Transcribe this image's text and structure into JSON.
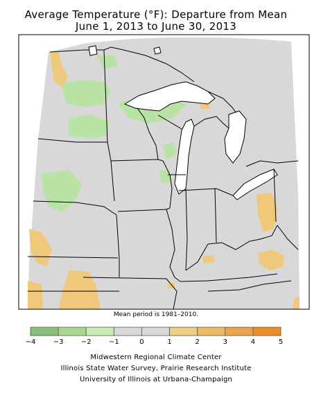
{
  "title_line1": "Average Temperature (°F): Departure from Mean",
  "title_line2": "June 1, 2013 to June 30, 2013",
  "mean_note": "Mean period is 1981–2010.",
  "legend": {
    "labels": [
      "−4",
      "−3",
      "−2",
      "−1",
      "0",
      "1",
      "2",
      "3",
      "4",
      "5"
    ],
    "colors": [
      "#88c07a",
      "#a6d98c",
      "#c8ecb4",
      "#d9d9d9",
      "#d9d9d9",
      "#f0d080",
      "#eebc60",
      "#eca648",
      "#ec8e22"
    ]
  },
  "map_colors": {
    "background": "#d8d8d8",
    "green": "#b9e3a4",
    "orange": "#efc87a",
    "border": "#000000",
    "outside": "#ffffff"
  },
  "credits": [
    "Midwestern Regional Climate Center",
    "Illinois State Water Survey, Prairie Research Institute",
    "University of Illinois at Urbana-Champaign"
  ]
}
